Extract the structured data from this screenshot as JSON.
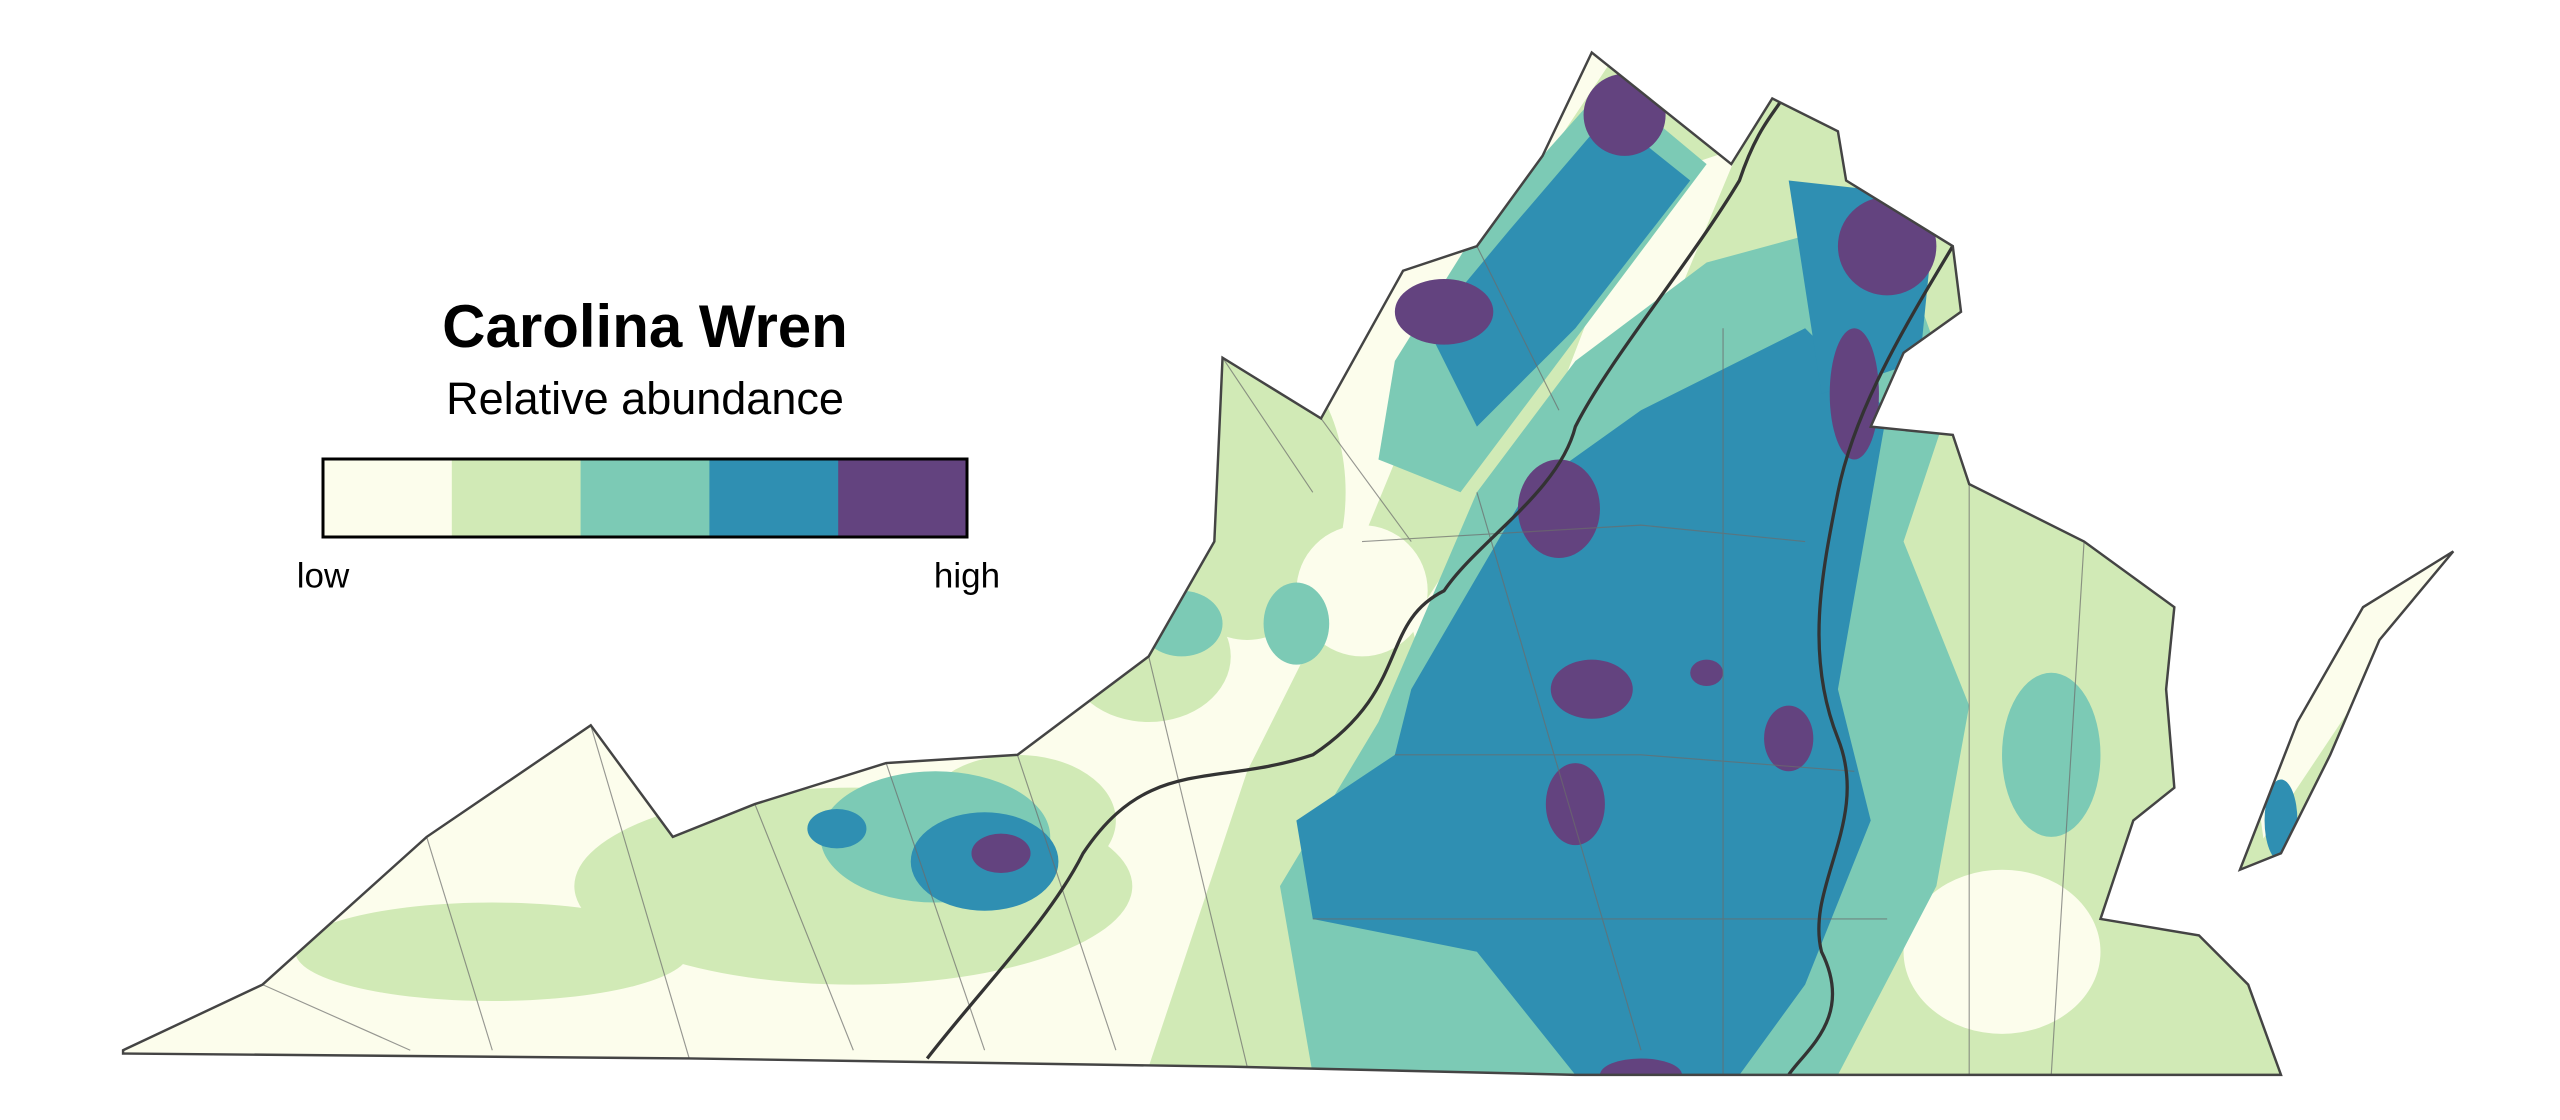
{
  "title": "Carolina Wren",
  "subtitle": "Relative abundance",
  "legend": {
    "colors": [
      "#fcfdec",
      "#d1eab6",
      "#7ccab5",
      "#2f8fb2",
      "#63437f"
    ],
    "low_label": "low",
    "high_label": "high"
  }
}
